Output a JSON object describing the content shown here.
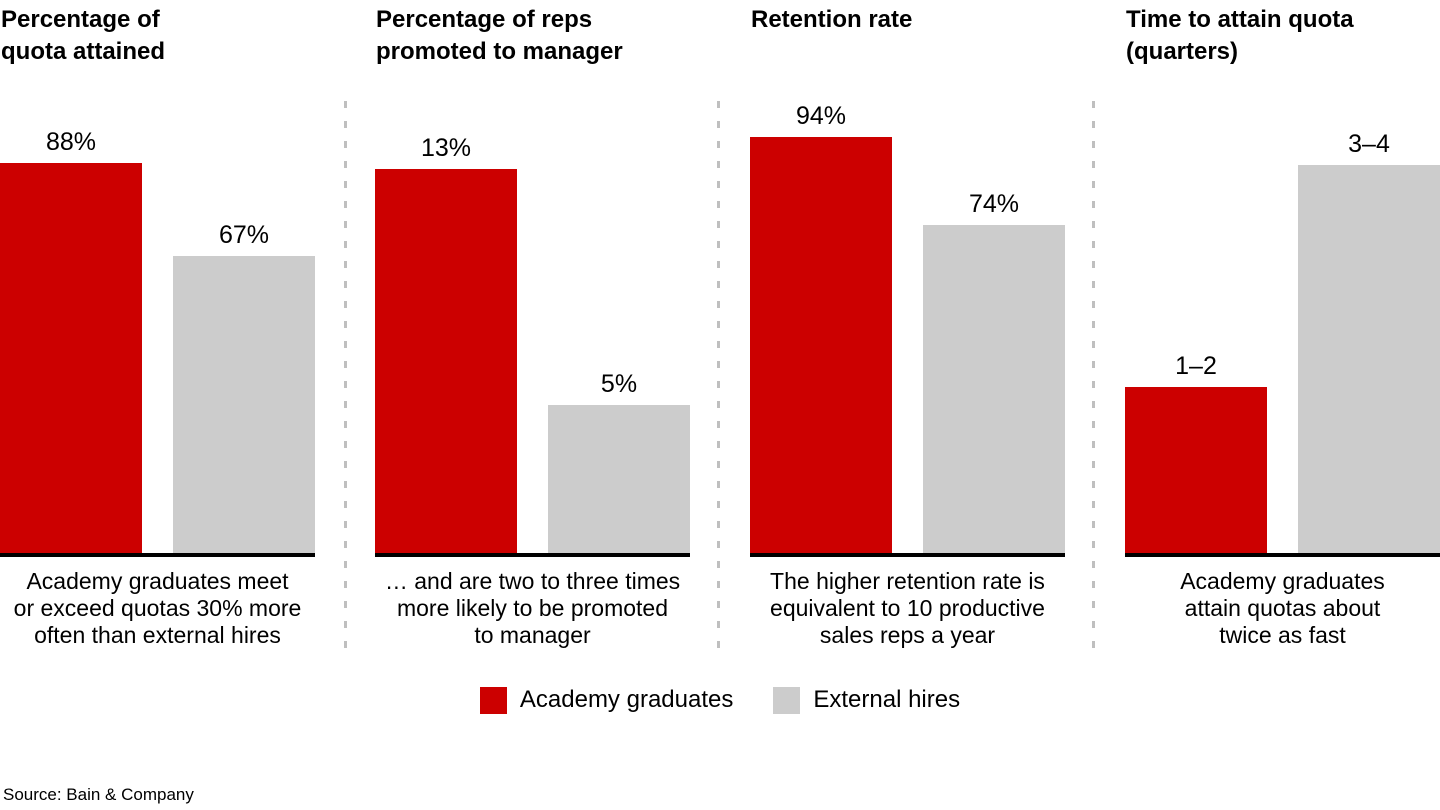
{
  "colors": {
    "academy_red": "#cc0000",
    "external_gray": "#cccccc",
    "divider_gray": "#bfbfbf",
    "baseline_black": "#000000",
    "text_black": "#000000",
    "background": "#ffffff"
  },
  "legend": [
    {
      "label": "Academy graduates",
      "color": "#cc0000"
    },
    {
      "label": "External hires",
      "color": "#cccccc"
    }
  ],
  "source": "Source: Bain & Company",
  "chart_data": {
    "type": "bar",
    "series_names": [
      "Academy graduates",
      "External hires"
    ],
    "legend_position": "bottom-center",
    "grid": false,
    "panels": [
      {
        "title": "Percentage of\nquota attained",
        "ylim": 100,
        "bars": [
          {
            "series": "Academy graduates",
            "value": 88,
            "display": "88%"
          },
          {
            "series": "External hires",
            "value": 67,
            "display": "67%"
          }
        ],
        "caption": "Academy graduates meet\nor exceed quotas 30% more\noften than external hires"
      },
      {
        "title": "Percentage of reps\npromoted to manager",
        "ylim": 15,
        "bars": [
          {
            "series": "Academy graduates",
            "value": 13,
            "display": "13%"
          },
          {
            "series": "External hires",
            "value": 5,
            "display": "5%"
          }
        ],
        "caption": "… and are two to three times\nmore likely to be promoted\nto manager"
      },
      {
        "title": "Retention rate",
        "ylim": 100,
        "bars": [
          {
            "series": "Academy graduates",
            "value": 94,
            "display": "94%"
          },
          {
            "series": "External hires",
            "value": 74,
            "display": "74%"
          }
        ],
        "caption": "The higher retention rate is\nequivalent to 10 productive\nsales reps a year"
      },
      {
        "title": "Time to attain quota\n(quarters)",
        "ylim": 4,
        "bars": [
          {
            "series": "Academy graduates",
            "value": 1.5,
            "display": "1–2"
          },
          {
            "series": "External hires",
            "value": 3.5,
            "display": "3–4"
          }
        ],
        "caption": "Academy graduates\nattain quotas about\ntwice as fast"
      }
    ]
  }
}
